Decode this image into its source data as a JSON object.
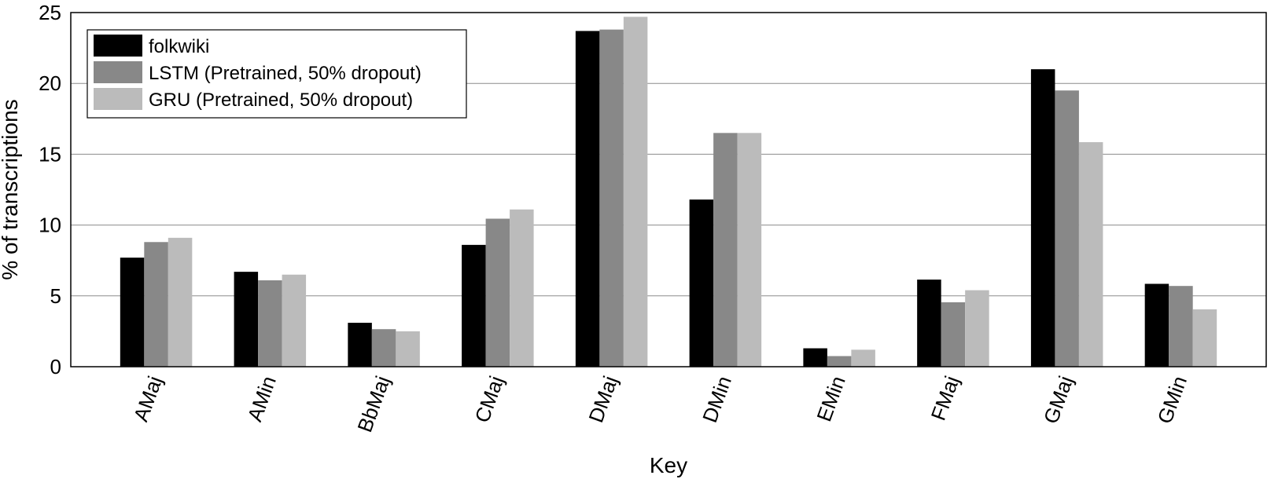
{
  "chart_data": {
    "type": "bar",
    "xlabel": "Key",
    "ylabel": "% of transcriptions",
    "ylim": [
      0,
      25
    ],
    "yticks": [
      0,
      5,
      10,
      15,
      20,
      25
    ],
    "grid": "horizontal",
    "legend_position": "top-left",
    "categories": [
      "AMaj",
      "AMin",
      "BbMaj",
      "CMaj",
      "DMaj",
      "DMin",
      "EMin",
      "FMaj",
      "GMaj",
      "GMin"
    ],
    "series": [
      {
        "name": "folkwiki",
        "color": "#000000",
        "values": [
          7.7,
          6.7,
          3.1,
          8.6,
          23.7,
          11.8,
          1.3,
          6.15,
          21.0,
          5.85
        ]
      },
      {
        "name": "LSTM (Pretrained, 50% dropout)",
        "color": "#888888",
        "values": [
          8.8,
          6.1,
          2.65,
          10.45,
          23.8,
          16.5,
          0.75,
          4.55,
          19.5,
          5.7
        ]
      },
      {
        "name": "GRU (Pretrained, 50% dropout)",
        "color": "#bbbbbb",
        "values": [
          9.1,
          6.5,
          2.5,
          11.1,
          24.7,
          16.5,
          1.2,
          5.4,
          15.85,
          4.05
        ]
      }
    ]
  }
}
